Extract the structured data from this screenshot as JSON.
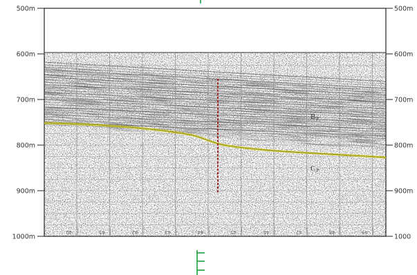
{
  "depth_scale": {
    "left_labels": [
      "500m",
      "600m",
      "700m",
      "800m",
      "900m",
      "1000m"
    ],
    "right_labels": [
      "500m",
      "600m",
      "700m",
      "800m",
      "900m",
      "1000"
    ],
    "values": [
      500,
      600,
      700,
      800,
      900,
      1000
    ]
  },
  "fix_marks": [
    "40",
    "41",
    "42",
    "43",
    "44",
    "45",
    "46",
    "47",
    "48",
    "49"
  ],
  "units": {
    "upper": {
      "main": "B",
      "sub": "P"
    },
    "lower": {
      "main": "C",
      "sub": "P"
    }
  },
  "colors": {
    "horizon": "#d6cf2a",
    "fault": "#a02020",
    "marker": "#1aa03a",
    "grid": "#8a8a8a"
  }
}
